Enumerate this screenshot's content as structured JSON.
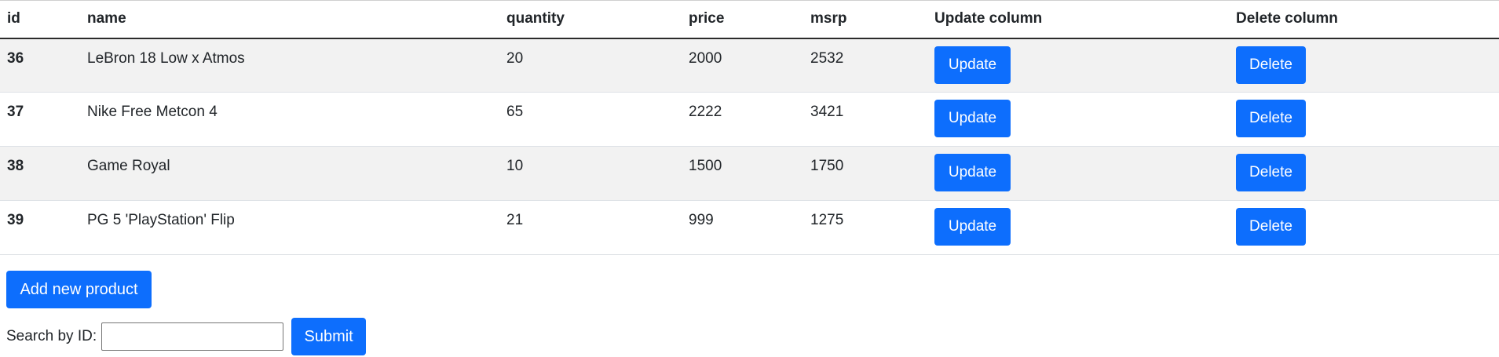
{
  "table": {
    "headers": [
      "id",
      "name",
      "quantity",
      "price",
      "msrp",
      "Update column",
      "Delete column"
    ],
    "rows": [
      {
        "id": "36",
        "name": "LeBron 18 Low x Atmos",
        "quantity": "20",
        "price": "2000",
        "msrp": "2532",
        "update": "Update",
        "delete": "Delete"
      },
      {
        "id": "37",
        "name": "Nike Free Metcon 4",
        "quantity": "65",
        "price": "2222",
        "msrp": "3421",
        "update": "Update",
        "delete": "Delete"
      },
      {
        "id": "38",
        "name": "Game Royal",
        "quantity": "10",
        "price": "1500",
        "msrp": "1750",
        "update": "Update",
        "delete": "Delete"
      },
      {
        "id": "39",
        "name": "PG 5 'PlayStation' Flip",
        "quantity": "21",
        "price": "999",
        "msrp": "1275",
        "update": "Update",
        "delete": "Delete"
      }
    ]
  },
  "actions": {
    "add_label": "Add new product"
  },
  "search": {
    "label": "Search by ID:",
    "value": "",
    "submit_label": "Submit"
  },
  "colors": {
    "primary": "#0d6efd",
    "stripe": "#f2f2f2"
  }
}
